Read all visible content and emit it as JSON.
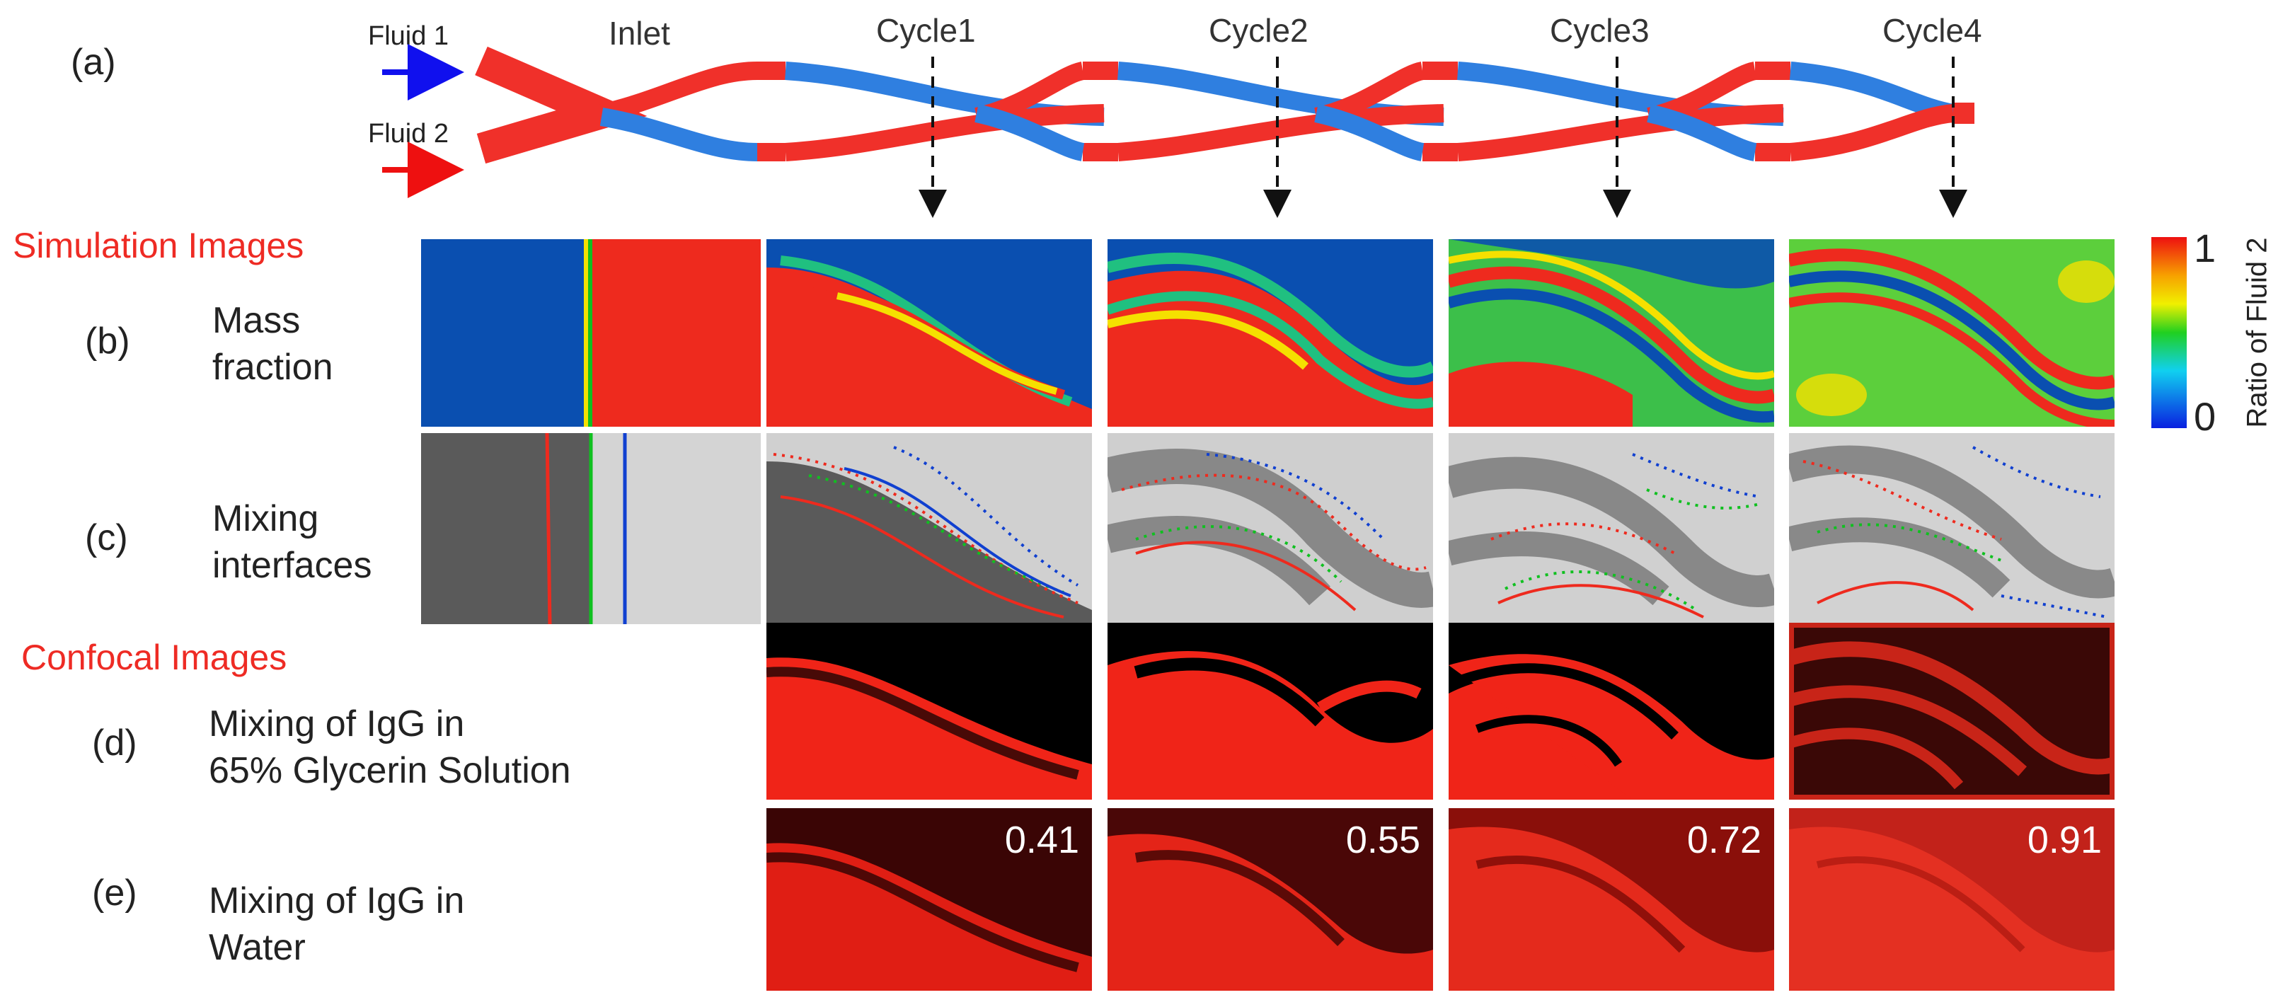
{
  "panel_a": {
    "letter": "(a)",
    "fluid1": "Fluid 1",
    "fluid2": "Fluid 2",
    "inlet": "Inlet",
    "cycles": [
      "Cycle1",
      "Cycle2",
      "Cycle3",
      "Cycle4"
    ]
  },
  "sections": {
    "simulation": "Simulation Images",
    "confocal": "Confocal Images"
  },
  "rows": {
    "b": {
      "letter": "(b)",
      "line1": "Mass",
      "line2": "fraction"
    },
    "c": {
      "letter": "(c)",
      "line1": "Mixing",
      "line2": "interfaces"
    },
    "d": {
      "letter": "(d)",
      "line1": "Mixing of IgG in",
      "line2": "65% Glycerin Solution"
    },
    "e": {
      "letter": "(e)",
      "line1": "Mixing of IgG in",
      "line2": "Water"
    }
  },
  "mixing_values": [
    "0.41",
    "0.55",
    "0.72",
    "0.91"
  ],
  "colorbar": {
    "title": "Ratio of Fluid 2",
    "max": "1",
    "min": "0"
  },
  "colors": {
    "fluid1": "#2f7fe0",
    "fluid2": "#f0302a",
    "arrow1": "#1010ee",
    "arrow2": "#ee1010",
    "section_text": "#ee2b24",
    "sim_blue": "#0a4fb0",
    "sim_red": "#ee2a1e",
    "interface_dark": "#5a5a5a",
    "interface_light": "#d4d4d4"
  }
}
